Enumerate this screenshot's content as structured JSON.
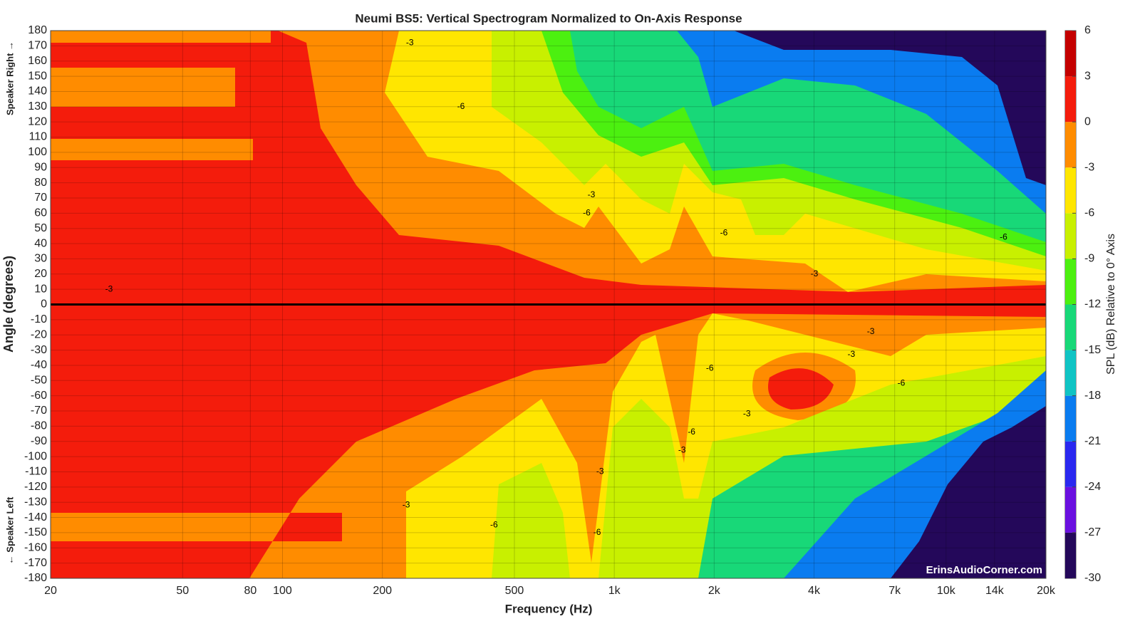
{
  "chart_data": {
    "type": "contour",
    "title": "Neumi BS5: Vertical Spectrogram Normalized to On-Axis Response",
    "x_label": "Frequency (Hz)",
    "y_label": "Angle (degrees)",
    "y_label_top": "Speaker Right →",
    "y_label_bottom": "← Speaker Left",
    "colorbar_label": "SPL (dB) Relative to 0° Axis",
    "watermark": "ErinsAudioCorner.com",
    "x_scale": "log",
    "grid": true,
    "xlim": [
      20,
      20000
    ],
    "xticks": [
      20,
      50,
      80,
      100,
      200,
      500,
      {
        "value": 1000,
        "label": "1k"
      },
      {
        "value": 2000,
        "label": "2k"
      },
      {
        "value": 4000,
        "label": "4k"
      },
      {
        "value": 7000,
        "label": "7k"
      },
      {
        "value": 10000,
        "label": "10k"
      },
      {
        "value": 14000,
        "label": "14k"
      },
      {
        "value": 20000,
        "label": "20k"
      }
    ],
    "ylim": [
      -180,
      180
    ],
    "yticks": [
      -180,
      -170,
      -160,
      -150,
      -140,
      -130,
      -120,
      -110,
      -100,
      -90,
      -80,
      -70,
      -60,
      -50,
      -40,
      -30,
      -20,
      -10,
      0,
      10,
      20,
      30,
      40,
      50,
      60,
      70,
      80,
      90,
      100,
      110,
      120,
      130,
      140,
      150,
      160,
      170,
      180
    ],
    "clim": [
      -30,
      6
    ],
    "cticks": [
      -30,
      -27,
      -24,
      -21,
      -18,
      -15,
      -12,
      -9,
      -6,
      -3,
      0,
      3,
      6
    ],
    "colors": [
      "#24085a",
      "#6a10e0",
      "#2a28f0",
      "#0a7cf0",
      "#10c4c4",
      "#18d878",
      "#4cf010",
      "#c8f000",
      "#ffe600",
      "#ff8c00",
      "#f41c0c",
      "#c40000"
    ],
    "contour_labels": [
      {
        "text": "-3",
        "x": 30,
        "y": 10
      },
      {
        "text": "-3",
        "x": 242,
        "y": 172
      },
      {
        "text": "-6",
        "x": 345,
        "y": 130
      },
      {
        "text": "-3",
        "x": 853,
        "y": 72
      },
      {
        "text": "-6",
        "x": 826,
        "y": 60
      },
      {
        "text": "-6",
        "x": 2140,
        "y": 47
      },
      {
        "text": "-3",
        "x": 4010,
        "y": 20
      },
      {
        "text": "-6",
        "x": 14900,
        "y": 44
      },
      {
        "text": "-3",
        "x": 5930,
        "y": -18
      },
      {
        "text": "-3",
        "x": 5180,
        "y": -33
      },
      {
        "text": "-6",
        "x": 1940,
        "y": -42
      },
      {
        "text": "-3",
        "x": 2510,
        "y": -72
      },
      {
        "text": "-6",
        "x": 7330,
        "y": -52
      },
      {
        "text": "-6",
        "x": 1710,
        "y": -84
      },
      {
        "text": "-3",
        "x": 1600,
        "y": -96
      },
      {
        "text": "-3",
        "x": 906,
        "y": -110
      },
      {
        "text": "-6",
        "x": 888,
        "y": -150
      },
      {
        "text": "-3",
        "x": 236,
        "y": -132
      },
      {
        "text": "-6",
        "x": 434,
        "y": -145
      }
    ]
  }
}
